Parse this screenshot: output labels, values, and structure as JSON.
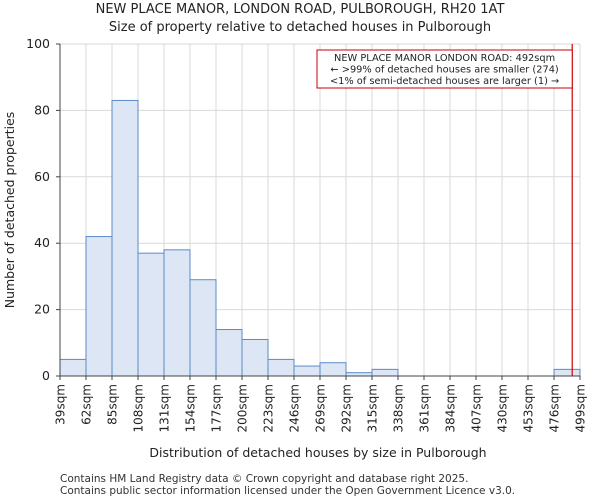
{
  "chart_data": {
    "type": "histogram",
    "title": "NEW PLACE MANOR, LONDON ROAD, PULBOROUGH, RH20 1AT",
    "subtitle": "Size of property relative to detached houses in Pulborough",
    "xlabel": "Distribution of detached houses by size in Pulborough",
    "ylabel": "Number of detached properties",
    "bin_labels": [
      "39sqm",
      "62sqm",
      "85sqm",
      "108sqm",
      "131sqm",
      "154sqm",
      "177sqm",
      "200sqm",
      "223sqm",
      "246sqm",
      "269sqm",
      "292sqm",
      "315sqm",
      "338sqm",
      "361sqm",
      "384sqm",
      "407sqm",
      "430sqm",
      "453sqm",
      "476sqm",
      "499sqm"
    ],
    "values": [
      5,
      42,
      83,
      37,
      38,
      29,
      14,
      11,
      5,
      3,
      4,
      1,
      2,
      0,
      0,
      0,
      0,
      0,
      0,
      2
    ],
    "ylim": [
      0,
      100
    ],
    "yticks": [
      0,
      20,
      40,
      60,
      80,
      100
    ],
    "grid": true,
    "bar_fill": "#dce6f4",
    "bar_stroke": "#5b8ac8",
    "marker": {
      "value_bin_position": 19.7,
      "color": "#cc0000",
      "annotation": [
        "NEW PLACE MANOR LONDON ROAD: 492sqm",
        "← >99% of detached houses are smaller (274)",
        "<1% of semi-detached houses are larger (1) →"
      ]
    }
  },
  "footer": [
    "Contains HM Land Registry data © Crown copyright and database right 2025.",
    "Contains public sector information licensed under the Open Government Licence v3.0."
  ]
}
